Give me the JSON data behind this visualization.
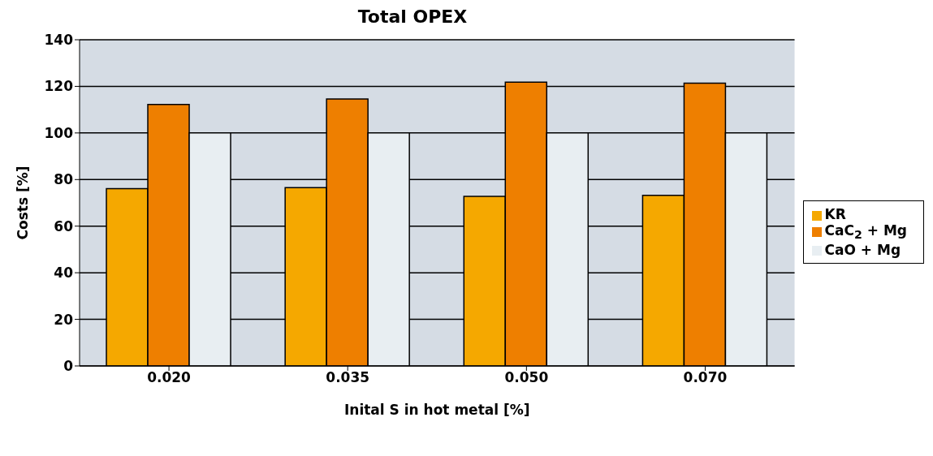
{
  "chart_data": {
    "type": "bar",
    "title": "Total OPEX",
    "xlabel": "Inital S in hot metal [%]",
    "ylabel": "Costs [%]",
    "categories": [
      "0.020",
      "0.035",
      "0.050",
      "0.070"
    ],
    "series": [
      {
        "name": "KR",
        "color": "#f5a800",
        "values": [
          76.1,
          76.5,
          72.8,
          73.2
        ]
      },
      {
        "name": "CaC$_{2}$ + Mg",
        "color": "#ee7f00",
        "values": [
          112.2,
          114.6,
          121.8,
          121.4
        ]
      },
      {
        "name": "CaO + Mg",
        "color": "#e8eef2",
        "values": [
          100,
          100,
          100,
          100
        ]
      }
    ],
    "ylim": [
      0,
      140
    ],
    "yticks": [
      0,
      20,
      40,
      60,
      80,
      100,
      120,
      140
    ],
    "grid": "y",
    "legend": "right"
  }
}
